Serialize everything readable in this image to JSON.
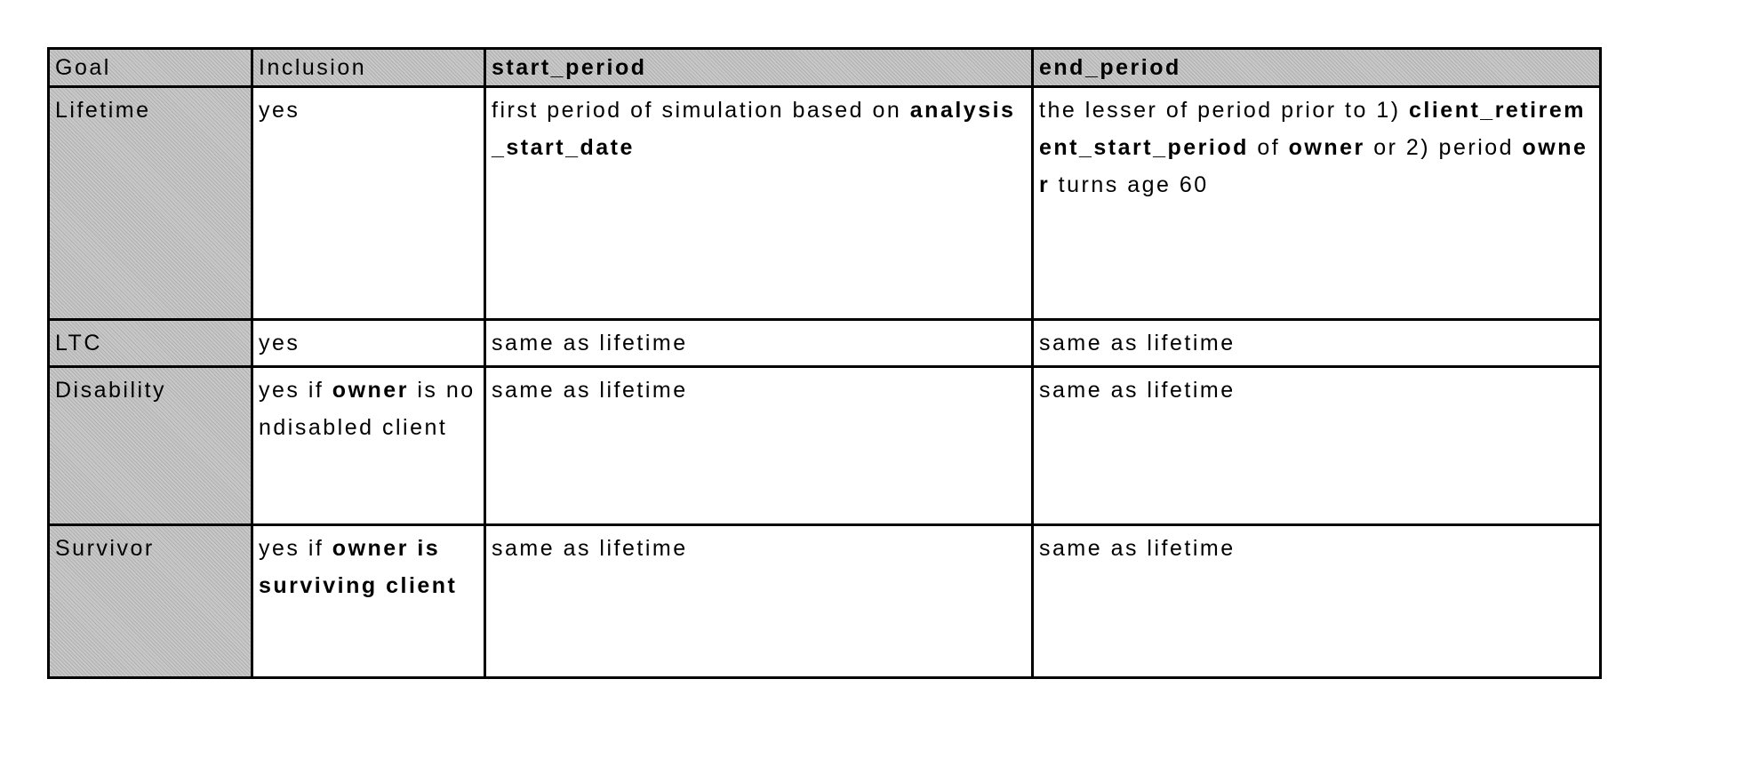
{
  "table": {
    "headers": [
      "Goal",
      "Inclusion",
      "start_period",
      "end_period"
    ],
    "rows": [
      {
        "goal": "Lifetime",
        "inclusion": "yes",
        "start": [
          "first period of simulation based on ",
          "analysis_start_date"
        ],
        "end": [
          "the lesser of period prior to 1) ",
          "client_retirement_start_period",
          " of ",
          "owner",
          " or 2) period ",
          "owner",
          " turns age 60"
        ]
      },
      {
        "goal": "LTC",
        "inclusion": "yes",
        "start": "same as lifetime",
        "end": "same as lifetime"
      },
      {
        "goal": "Disability",
        "inclusion": [
          "yes if ",
          "owner",
          " is nondisabled client"
        ],
        "start": "same as lifetime",
        "end": "same as lifetime"
      },
      {
        "goal": "Survivor",
        "inclusion": [
          "yes if ",
          "owner is surviving client"
        ],
        "start": "same as lifetime",
        "end": "same as lifetime"
      }
    ]
  },
  "colors": {
    "header_shade": "#c8c8c8",
    "border": "#000000"
  }
}
